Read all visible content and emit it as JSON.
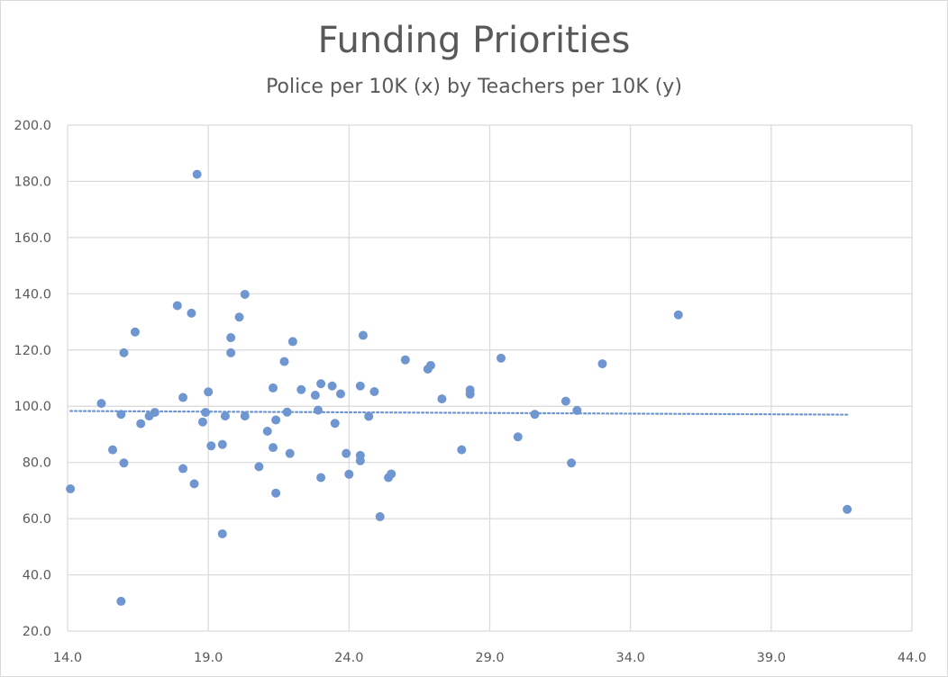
{
  "chart_data": {
    "type": "scatter",
    "title": "Funding Priorities",
    "subtitle": "Police per 10K (x) by Teachers per 10K (y)",
    "xlabel": "",
    "ylabel": "",
    "xlim": [
      14.0,
      44.0
    ],
    "ylim": [
      20.0,
      200.0
    ],
    "x_ticks": [
      "14.0",
      "19.0",
      "24.0",
      "29.0",
      "34.0",
      "39.0",
      "44.0"
    ],
    "y_ticks": [
      "20.0",
      "40.0",
      "60.0",
      "80.0",
      "100.0",
      "120.0",
      "140.0",
      "160.0",
      "180.0",
      "200.0"
    ],
    "grid": true,
    "marker_color": "#6f96d1",
    "trendline": {
      "type": "linear",
      "style": "dotted",
      "color": "#6f96d1",
      "x_range": [
        14.1,
        41.7
      ],
      "y_at_start": 98.3,
      "y_at_end": 97.0
    },
    "points": [
      [
        14.1,
        70.6
      ],
      [
        15.2,
        101.0
      ],
      [
        15.6,
        84.5
      ],
      [
        15.9,
        97.1
      ],
      [
        15.9,
        30.6
      ],
      [
        16.0,
        119.0
      ],
      [
        16.0,
        79.8
      ],
      [
        16.4,
        126.4
      ],
      [
        16.6,
        93.8
      ],
      [
        16.9,
        96.5
      ],
      [
        17.1,
        97.8
      ],
      [
        17.9,
        135.8
      ],
      [
        18.1,
        103.1
      ],
      [
        18.1,
        77.8
      ],
      [
        18.4,
        133.1
      ],
      [
        18.6,
        182.5
      ],
      [
        18.5,
        72.4
      ],
      [
        18.8,
        94.4
      ],
      [
        18.9,
        97.8
      ],
      [
        19.0,
        105.1
      ],
      [
        19.1,
        85.9
      ],
      [
        19.6,
        96.5
      ],
      [
        19.5,
        86.4
      ],
      [
        19.5,
        54.6
      ],
      [
        19.8,
        124.4
      ],
      [
        19.8,
        119.0
      ],
      [
        20.1,
        131.7
      ],
      [
        20.3,
        139.8
      ],
      [
        20.3,
        96.5
      ],
      [
        20.8,
        78.5
      ],
      [
        21.1,
        91.1
      ],
      [
        21.3,
        106.5
      ],
      [
        21.3,
        85.3
      ],
      [
        21.4,
        95.1
      ],
      [
        21.4,
        69.1
      ],
      [
        21.7,
        115.9
      ],
      [
        21.8,
        97.9
      ],
      [
        21.9,
        83.2
      ],
      [
        22.0,
        123.0
      ],
      [
        22.3,
        105.9
      ],
      [
        22.8,
        103.9
      ],
      [
        22.9,
        98.6
      ],
      [
        23.0,
        108.0
      ],
      [
        23.0,
        74.6
      ],
      [
        23.4,
        107.2
      ],
      [
        23.5,
        93.9
      ],
      [
        23.7,
        104.4
      ],
      [
        23.9,
        83.2
      ],
      [
        24.0,
        75.8
      ],
      [
        24.4,
        107.2
      ],
      [
        24.4,
        82.5
      ],
      [
        24.4,
        80.6
      ],
      [
        24.5,
        125.2
      ],
      [
        24.7,
        96.4
      ],
      [
        24.9,
        105.2
      ],
      [
        25.1,
        60.7
      ],
      [
        25.4,
        74.6
      ],
      [
        25.5,
        75.9
      ],
      [
        26.0,
        116.5
      ],
      [
        26.8,
        113.2
      ],
      [
        26.9,
        114.5
      ],
      [
        27.3,
        102.6
      ],
      [
        28.0,
        84.5
      ],
      [
        28.3,
        105.8
      ],
      [
        28.3,
        104.3
      ],
      [
        29.4,
        117.1
      ],
      [
        30.0,
        89.1
      ],
      [
        30.6,
        97.1
      ],
      [
        31.7,
        101.8
      ],
      [
        31.9,
        79.8
      ],
      [
        32.1,
        98.5
      ],
      [
        33.0,
        115.1
      ],
      [
        35.7,
        132.5
      ],
      [
        41.7,
        63.3
      ]
    ]
  }
}
